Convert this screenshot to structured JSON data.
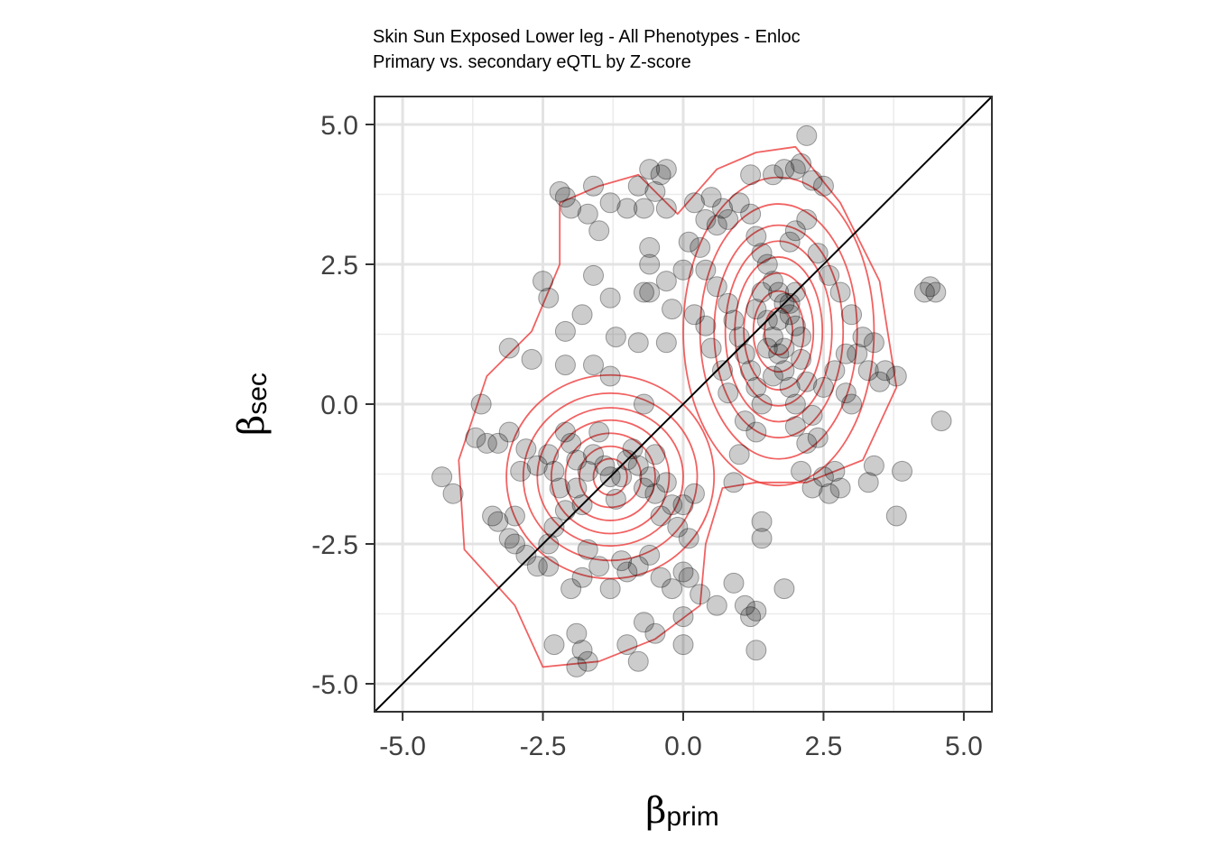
{
  "chart_data": {
    "type": "scatter",
    "title": "Skin Sun Exposed Lower leg - All Phenotypes - Enloc",
    "subtitle": "Primary vs. secondary eQTL by Z-score",
    "xlabel_symbol": "β",
    "xlabel_sub": "prim",
    "ylabel_symbol": "β",
    "ylabel_sub": "sec",
    "xlim": [
      -5.5,
      5.5
    ],
    "ylim": [
      -5.5,
      5.5
    ],
    "x_ticks": [
      -5.0,
      -2.5,
      0.0,
      2.5,
      5.0
    ],
    "y_ticks": [
      -5.0,
      -2.5,
      0.0,
      2.5,
      5.0
    ],
    "x_tick_labels": [
      "-5.0",
      "-2.5",
      "0.0",
      "2.5",
      "5.0"
    ],
    "y_tick_labels": [
      "-5.0",
      "-2.5",
      "0.0",
      "2.5",
      "5.0"
    ],
    "grid": true,
    "reference_line": {
      "type": "identity",
      "color": "#000000"
    },
    "point_color": "#000000",
    "point_opacity": 0.2,
    "contour_color": "#ee3b3b",
    "density_centers": [
      {
        "x": 1.7,
        "y": 1.3
      },
      {
        "x": -1.3,
        "y": -1.3
      }
    ],
    "points": [
      [
        -2.2,
        3.8
      ],
      [
        -2.1,
        3.7
      ],
      [
        -2.0,
        3.5
      ],
      [
        -1.7,
        3.4
      ],
      [
        -1.6,
        3.9
      ],
      [
        -1.3,
        3.6
      ],
      [
        -1.5,
        3.1
      ],
      [
        -1.0,
        3.5
      ],
      [
        -0.7,
        3.5
      ],
      [
        -0.8,
        3.9
      ],
      [
        -0.6,
        4.2
      ],
      [
        -0.4,
        4.1
      ],
      [
        -0.3,
        4.2
      ],
      [
        -0.5,
        3.8
      ],
      [
        -0.3,
        3.5
      ],
      [
        -0.6,
        2.8
      ],
      [
        -0.6,
        2.5
      ],
      [
        -0.7,
        2.0
      ],
      [
        -0.6,
        2.0
      ],
      [
        -0.3,
        2.2
      ],
      [
        -0.2,
        1.7
      ],
      [
        -0.3,
        1.1
      ],
      [
        -0.8,
        1.1
      ],
      [
        -1.2,
        1.2
      ],
      [
        -1.3,
        1.9
      ],
      [
        -1.6,
        2.3
      ],
      [
        -1.8,
        1.6
      ],
      [
        -2.1,
        1.3
      ],
      [
        -2.5,
        2.2
      ],
      [
        -2.4,
        1.9
      ],
      [
        -3.1,
        1.0
      ],
      [
        -2.7,
        0.8
      ],
      [
        -2.1,
        0.7
      ],
      [
        -1.6,
        0.7
      ],
      [
        -1.3,
        0.5
      ],
      [
        -0.7,
        0.0
      ],
      [
        -3.6,
        0.0
      ],
      [
        -3.5,
        -0.7
      ],
      [
        -3.7,
        -0.6
      ],
      [
        -3.3,
        -0.7
      ],
      [
        -3.1,
        -0.5
      ],
      [
        -2.8,
        -0.8
      ],
      [
        -2.6,
        -1.1
      ],
      [
        -2.9,
        -1.2
      ],
      [
        -3.4,
        -2.0
      ],
      [
        -3.3,
        -2.1
      ],
      [
        -3.0,
        -2.0
      ],
      [
        -3.0,
        -2.5
      ],
      [
        -3.1,
        -2.4
      ],
      [
        -2.8,
        -2.7
      ],
      [
        -2.6,
        -2.9
      ],
      [
        -2.4,
        -2.5
      ],
      [
        -2.3,
        -2.2
      ],
      [
        -2.1,
        -1.9
      ],
      [
        -2.2,
        -1.5
      ],
      [
        -2.3,
        -1.2
      ],
      [
        -2.4,
        -0.9
      ],
      [
        -2.1,
        -0.5
      ],
      [
        -2.0,
        -0.7
      ],
      [
        -1.9,
        -1.0
      ],
      [
        -1.9,
        -1.5
      ],
      [
        -1.8,
        -1.8
      ],
      [
        -1.7,
        -1.2
      ],
      [
        -1.6,
        -0.9
      ],
      [
        -1.5,
        -0.5
      ],
      [
        -1.4,
        -1.1
      ],
      [
        -1.3,
        -1.3
      ],
      [
        -1.2,
        -1.7
      ],
      [
        -1.1,
        -1.3
      ],
      [
        -1.0,
        -1.0
      ],
      [
        -0.9,
        -0.8
      ],
      [
        -0.8,
        -1.1
      ],
      [
        -0.7,
        -1.5
      ],
      [
        -0.6,
        -1.3
      ],
      [
        -0.5,
        -0.9
      ],
      [
        -0.5,
        -1.6
      ],
      [
        -0.4,
        -2.0
      ],
      [
        -0.3,
        -1.4
      ],
      [
        -0.2,
        -1.8
      ],
      [
        -0.1,
        -2.2
      ],
      [
        0.0,
        -1.8
      ],
      [
        0.2,
        -1.6
      ],
      [
        0.1,
        -2.4
      ],
      [
        -1.7,
        -2.6
      ],
      [
        -1.5,
        -2.9
      ],
      [
        -1.3,
        -3.3
      ],
      [
        -1.1,
        -2.8
      ],
      [
        -1.0,
        -3.0
      ],
      [
        -0.8,
        -2.9
      ],
      [
        -0.6,
        -2.7
      ],
      [
        -0.4,
        -3.1
      ],
      [
        -0.2,
        -3.3
      ],
      [
        0.0,
        -3.0
      ],
      [
        0.1,
        -3.1
      ],
      [
        0.3,
        -3.4
      ],
      [
        0.6,
        -3.6
      ],
      [
        0.9,
        -3.2
      ],
      [
        1.1,
        -3.6
      ],
      [
        1.2,
        -3.8
      ],
      [
        1.3,
        -3.7
      ],
      [
        1.8,
        -3.3
      ],
      [
        -2.0,
        -3.3
      ],
      [
        -1.8,
        -3.1
      ],
      [
        -2.3,
        -4.3
      ],
      [
        -1.9,
        -4.1
      ],
      [
        -1.8,
        -4.4
      ],
      [
        -1.7,
        -4.6
      ],
      [
        -1.9,
        -4.7
      ],
      [
        -1.0,
        -4.3
      ],
      [
        -0.8,
        -4.6
      ],
      [
        -0.7,
        -3.9
      ],
      [
        -0.5,
        -4.1
      ],
      [
        0.0,
        -4.3
      ],
      [
        0.0,
        -3.8
      ],
      [
        1.3,
        -4.4
      ],
      [
        -2.4,
        -2.9
      ],
      [
        0.5,
        3.7
      ],
      [
        0.6,
        3.2
      ],
      [
        0.7,
        3.5
      ],
      [
        0.8,
        3.3
      ],
      [
        1.0,
        3.6
      ],
      [
        1.2,
        3.4
      ],
      [
        1.3,
        3.0
      ],
      [
        1.4,
        2.7
      ],
      [
        1.5,
        2.5
      ],
      [
        1.6,
        2.2
      ],
      [
        1.7,
        2.0
      ],
      [
        1.8,
        1.8
      ],
      [
        1.9,
        1.6
      ],
      [
        2.0,
        1.4
      ],
      [
        2.1,
        1.2
      ],
      [
        1.2,
        4.1
      ],
      [
        1.6,
        4.1
      ],
      [
        1.8,
        4.2
      ],
      [
        2.0,
        4.2
      ],
      [
        2.1,
        4.3
      ],
      [
        2.2,
        4.8
      ],
      [
        2.3,
        4.0
      ],
      [
        2.5,
        3.9
      ],
      [
        2.2,
        3.3
      ],
      [
        2.0,
        3.1
      ],
      [
        1.9,
        2.9
      ],
      [
        2.4,
        2.7
      ],
      [
        2.6,
        2.3
      ],
      [
        2.8,
        2.0
      ],
      [
        3.0,
        1.6
      ],
      [
        3.2,
        1.2
      ],
      [
        3.1,
        0.9
      ],
      [
        3.3,
        0.6
      ],
      [
        3.5,
        0.4
      ],
      [
        3.6,
        0.6
      ],
      [
        3.8,
        0.5
      ],
      [
        3.4,
        1.1
      ],
      [
        2.9,
        0.9
      ],
      [
        2.7,
        0.6
      ],
      [
        2.5,
        0.3
      ],
      [
        2.3,
        -0.2
      ],
      [
        2.0,
        -0.4
      ],
      [
        2.2,
        -0.7
      ],
      [
        2.4,
        -0.6
      ],
      [
        2.9,
        0.2
      ],
      [
        3.0,
        0.0
      ],
      [
        0.3,
        2.8
      ],
      [
        0.4,
        2.4
      ],
      [
        0.6,
        2.1
      ],
      [
        0.8,
        1.8
      ],
      [
        0.9,
        1.5
      ],
      [
        1.0,
        1.2
      ],
      [
        1.1,
        0.9
      ],
      [
        1.2,
        0.6
      ],
      [
        1.3,
        0.3
      ],
      [
        1.4,
        0.0
      ],
      [
        1.5,
        1.5
      ],
      [
        1.6,
        1.2
      ],
      [
        1.7,
        0.9
      ],
      [
        1.8,
        0.6
      ],
      [
        1.9,
        0.3
      ],
      [
        2.0,
        0.0
      ],
      [
        1.3,
        1.7
      ],
      [
        1.4,
        2.0
      ],
      [
        1.5,
        1.0
      ],
      [
        1.6,
        0.5
      ],
      [
        1.7,
        1.5
      ],
      [
        1.8,
        1.0
      ],
      [
        1.9,
        1.8
      ],
      [
        2.0,
        2.0
      ],
      [
        2.1,
        0.8
      ],
      [
        2.2,
        0.4
      ],
      [
        1.1,
        -0.3
      ],
      [
        1.3,
        -0.5
      ],
      [
        0.8,
        0.2
      ],
      [
        0.7,
        0.6
      ],
      [
        0.5,
        1.0
      ],
      [
        0.4,
        1.4
      ],
      [
        0.2,
        1.6
      ],
      [
        0.0,
        2.4
      ],
      [
        0.1,
        2.9
      ],
      [
        0.2,
        3.6
      ],
      [
        0.4,
        3.3
      ],
      [
        2.1,
        -1.2
      ],
      [
        2.3,
        -1.5
      ],
      [
        2.5,
        -1.3
      ],
      [
        2.7,
        -1.2
      ],
      [
        2.8,
        -1.5
      ],
      [
        2.6,
        -1.6
      ],
      [
        3.4,
        -1.1
      ],
      [
        3.3,
        -1.4
      ],
      [
        3.9,
        -1.2
      ],
      [
        3.8,
        -2.0
      ],
      [
        4.3,
        2.0
      ],
      [
        4.4,
        2.1
      ],
      [
        4.5,
        2.0
      ],
      [
        4.6,
        -0.3
      ],
      [
        1.4,
        -2.1
      ],
      [
        1.4,
        -2.4
      ],
      [
        1.0,
        -0.9
      ],
      [
        0.9,
        -1.4
      ],
      [
        -4.3,
        -1.3
      ],
      [
        -4.1,
        -1.6
      ]
    ]
  }
}
